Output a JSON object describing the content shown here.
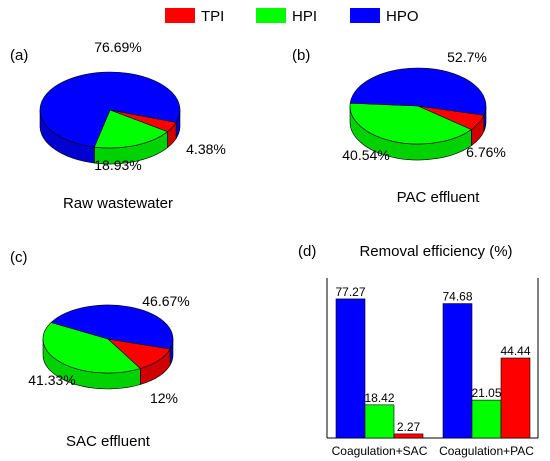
{
  "legend": {
    "placement": "top-center",
    "items": [
      {
        "label": "TPI",
        "color": "#ff0000"
      },
      {
        "label": "HPI",
        "color": "#00ff00"
      },
      {
        "label": "HPO",
        "color": "#0000ff"
      }
    ]
  },
  "chart_data": [
    {
      "panel": "(a)",
      "type": "pie",
      "title": "Raw wastewater",
      "labels": [
        "TPI",
        "HPI",
        "HPO"
      ],
      "values": [
        4.38,
        18.93,
        76.69
      ],
      "value_labels": [
        "4.38%",
        "18.93%",
        "76.69%"
      ],
      "colors": [
        "#ff0000",
        "#00ff00",
        "#0000ff"
      ]
    },
    {
      "panel": "(b)",
      "type": "pie",
      "title": "PAC effluent",
      "labels": [
        "TPI",
        "HPI",
        "HPO"
      ],
      "values": [
        6.76,
        40.54,
        52.7
      ],
      "value_labels": [
        "6.76%",
        "40.54%",
        "52.7%"
      ],
      "colors": [
        "#ff0000",
        "#00ff00",
        "#0000ff"
      ]
    },
    {
      "panel": "(c)",
      "type": "pie",
      "title": "SAC effluent",
      "labels": [
        "TPI",
        "HPI",
        "HPO"
      ],
      "values": [
        12,
        41.33,
        46.67
      ],
      "value_labels": [
        "12%",
        "41.33%",
        "46.67%"
      ],
      "colors": [
        "#ff0000",
        "#00ff00",
        "#0000ff"
      ]
    },
    {
      "panel": "(d)",
      "type": "bar",
      "title": "Removal efficiency (%)",
      "categories": [
        "Coagulation+SAC",
        "Coagulation+PAC"
      ],
      "ylim": [
        0,
        100
      ],
      "series": [
        {
          "name": "HPO",
          "color": "#0000ff",
          "values": [
            77.27,
            74.68
          ],
          "value_labels": [
            "77.27",
            "74.68"
          ]
        },
        {
          "name": "HPI",
          "color": "#00ff00",
          "values": [
            18.42,
            21.05
          ],
          "value_labels": [
            "18.42",
            "21.05"
          ]
        },
        {
          "name": "TPI",
          "color": "#ff0000",
          "values": [
            2.27,
            44.44
          ],
          "value_labels": [
            "2.27",
            "44.44"
          ]
        }
      ]
    }
  ]
}
